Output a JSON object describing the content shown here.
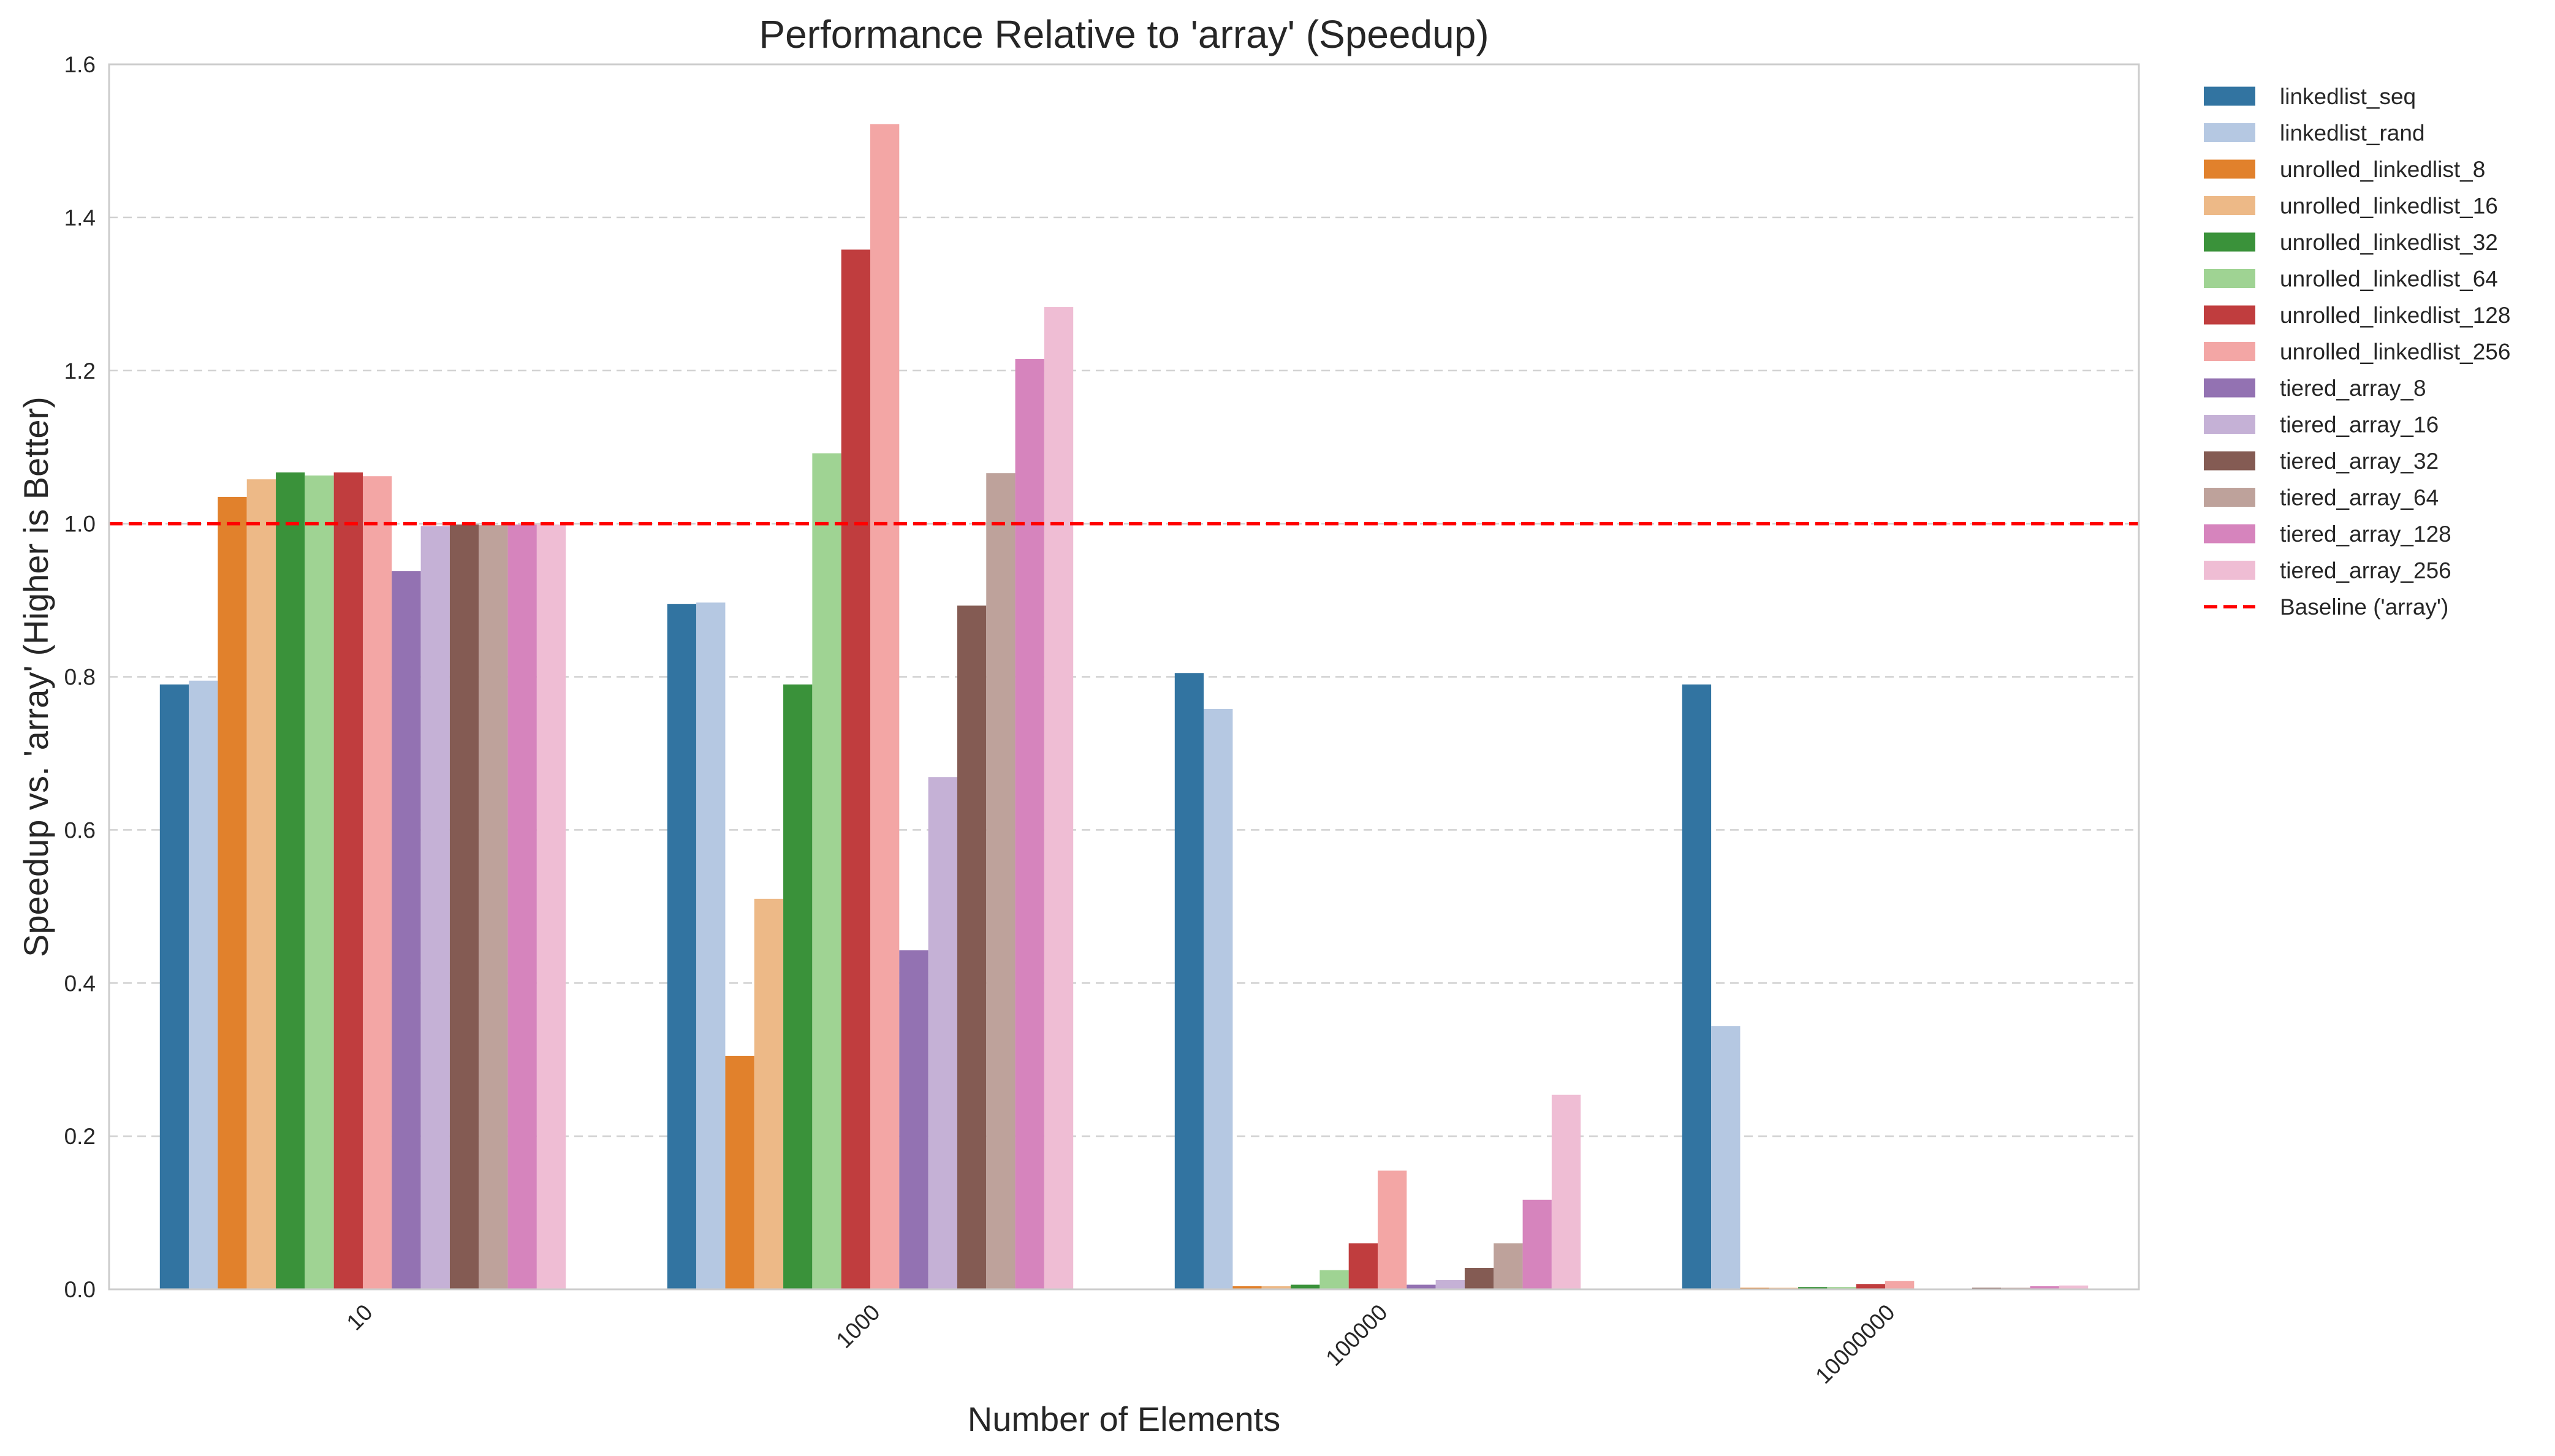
{
  "chart_data": {
    "type": "bar",
    "title": "Performance Relative to 'array' (Speedup)",
    "xlabel": "Number of Elements",
    "ylabel": "Speedup vs. 'array' (Higher is Better)",
    "categories": [
      "10",
      "1000",
      "100000",
      "10000000"
    ],
    "ylim": [
      0,
      1.6
    ],
    "yticks": [
      "0.0",
      "0.2",
      "0.4",
      "0.6",
      "0.8",
      "1.0",
      "1.2",
      "1.4",
      "1.6"
    ],
    "grid": "horizontal dashed",
    "legend_position": "outside-right",
    "series": [
      {
        "name": "linkedlist_seq",
        "color": "#3274a1",
        "values": [
          0.79,
          0.895,
          0.805,
          0.79
        ]
      },
      {
        "name": "linkedlist_rand",
        "color": "#b5c8e2",
        "values": [
          0.795,
          0.897,
          0.758,
          0.344
        ]
      },
      {
        "name": "unrolled_linkedlist_8",
        "color": "#e1812c",
        "values": [
          1.035,
          0.305,
          0.004,
          0.002
        ]
      },
      {
        "name": "unrolled_linkedlist_16",
        "color": "#edb987",
        "values": [
          1.058,
          0.51,
          0.004,
          0.002
        ]
      },
      {
        "name": "unrolled_linkedlist_32",
        "color": "#3a923a",
        "values": [
          1.067,
          0.79,
          0.006,
          0.003
        ]
      },
      {
        "name": "unrolled_linkedlist_64",
        "color": "#9fd393",
        "values": [
          1.063,
          1.092,
          0.025,
          0.003
        ]
      },
      {
        "name": "unrolled_linkedlist_128",
        "color": "#c03d3e",
        "values": [
          1.067,
          1.358,
          0.06,
          0.007
        ]
      },
      {
        "name": "unrolled_linkedlist_256",
        "color": "#f3a6a5",
        "values": [
          1.062,
          1.522,
          0.155,
          0.011
        ]
      },
      {
        "name": "tiered_array_8",
        "color": "#9372b2",
        "values": [
          0.938,
          0.443,
          0.006,
          0.001
        ]
      },
      {
        "name": "tiered_array_16",
        "color": "#c5b1d6",
        "values": [
          0.997,
          0.669,
          0.012,
          0.001
        ]
      },
      {
        "name": "tiered_array_32",
        "color": "#845b53",
        "values": [
          0.999,
          0.893,
          0.028,
          0.002
        ]
      },
      {
        "name": "tiered_array_64",
        "color": "#bea29b",
        "values": [
          0.998,
          1.066,
          0.06,
          0.002
        ]
      },
      {
        "name": "tiered_array_128",
        "color": "#d684bd",
        "values": [
          0.999,
          1.215,
          0.117,
          0.004
        ]
      },
      {
        "name": "tiered_array_256",
        "color": "#efbdd4",
        "values": [
          0.999,
          1.283,
          0.254,
          0.005
        ]
      }
    ],
    "baseline": {
      "name": "Baseline ('array')",
      "value": 1.0,
      "color": "#ff0000",
      "style": "dashed"
    }
  }
}
